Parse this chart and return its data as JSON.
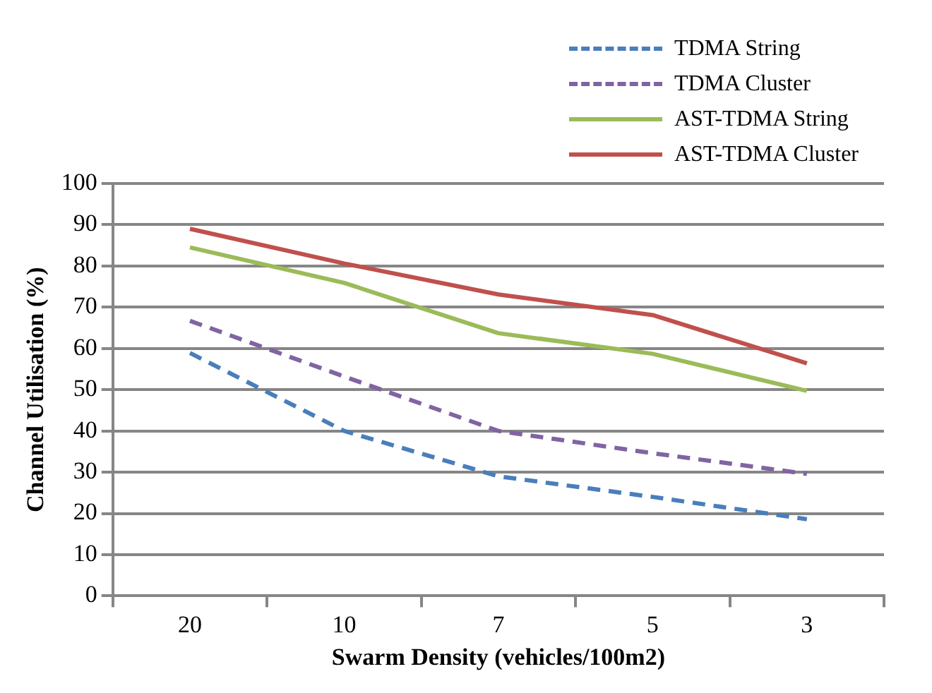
{
  "chart_data": {
    "type": "line",
    "xlabel": "Swarm Density (vehicles/100m2)",
    "ylabel": "Channel Utilisation (%)",
    "categories": [
      "20",
      "10",
      "7",
      "5",
      "3"
    ],
    "series": [
      {
        "name": "TDMA String",
        "color": "#4a7ebb",
        "line_style": "dashed",
        "values": [
          58.9,
          40,
          29,
          24,
          18.6
        ]
      },
      {
        "name": "TDMA Cluster",
        "color": "#8064a2",
        "line_style": "dashed",
        "values": [
          66.7,
          53.2,
          40,
          34.6,
          29.6
        ]
      },
      {
        "name": "AST-TDMA String",
        "color": "#9bbb59",
        "line_style": "solid",
        "values": [
          84.5,
          75.9,
          63.7,
          58.7,
          49.7
        ]
      },
      {
        "name": "AST-TDMA Cluster",
        "color": "#c0504d",
        "line_style": "solid",
        "values": [
          89,
          80.6,
          73.1,
          68.1,
          56.4
        ]
      }
    ],
    "ylim": [
      0,
      100
    ],
    "yticks": [
      0,
      10,
      20,
      30,
      40,
      50,
      60,
      70,
      80,
      90,
      100
    ],
    "grid": "y",
    "legend": "top right",
    "marker": "none"
  }
}
